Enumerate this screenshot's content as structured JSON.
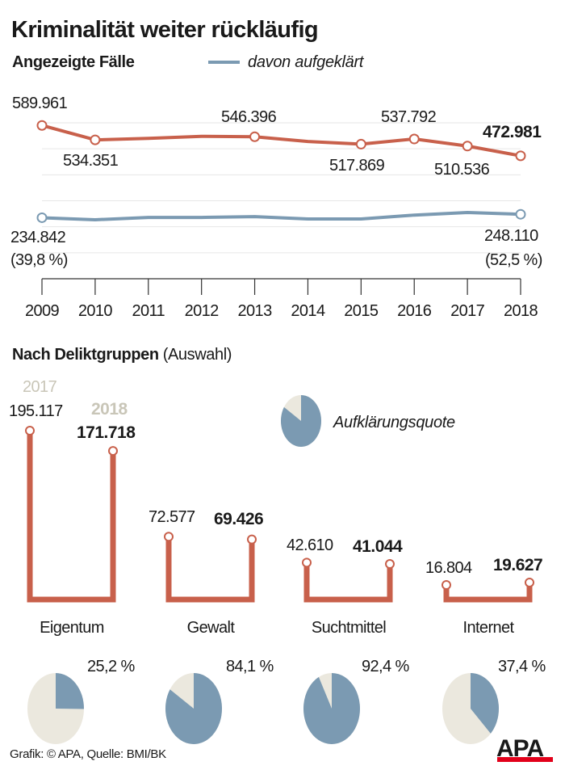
{
  "title": "Kriminalität weiter rückläufig",
  "colors": {
    "reported": "#c8604b",
    "solved": "#7b9ab2",
    "unsolved": "#ebe8de",
    "grid": "#e6e6e6",
    "year_grey": "#c9c6b8",
    "logo_red": "#e2001a"
  },
  "chart_data": [
    {
      "type": "line",
      "title": "Angezeigte Fälle",
      "legend_label": "davon aufgeklärt",
      "categories": [
        "2009",
        "2010",
        "2011",
        "2012",
        "2013",
        "2014",
        "2015",
        "2016",
        "2017",
        "2018"
      ],
      "ylim": [
        0,
        600000
      ],
      "grid": true,
      "series": [
        {
          "name": "Angezeigte Fälle",
          "values": [
            589961,
            534351,
            540000,
            548000,
            546396,
            528000,
            517869,
            537792,
            510536,
            472981
          ]
        },
        {
          "name": "davon aufgeklärt",
          "values": [
            234842,
            227000,
            236000,
            236000,
            239000,
            230000,
            230000,
            245000,
            255000,
            248110
          ]
        }
      ],
      "data_labels": {
        "v2009": "589.961",
        "v2010": "534.351",
        "v2013": "546.396",
        "v2015": "517.869",
        "v2016": "537.792",
        "v2017": "510.536",
        "v2018": "472.981",
        "s2009": "234.842",
        "s2009_pct": "(39,8 %)",
        "s2018": "248.110",
        "s2018_pct": "(52,5 %)"
      }
    },
    {
      "type": "bar",
      "title": "Nach Deliktgruppen",
      "subtitle": "(Auswahl)",
      "year_labels": [
        "2017",
        "2018"
      ],
      "categories": [
        "Eigentum",
        "Gewalt",
        "Suchtmittel",
        "Internet"
      ],
      "series": [
        {
          "name": "2017",
          "values": [
            195117,
            72577,
            42610,
            16804
          ],
          "labels": [
            "195.117",
            "72.577",
            "42.610",
            "16.804"
          ]
        },
        {
          "name": "2018",
          "values": [
            171718,
            69426,
            41044,
            19627
          ],
          "labels": [
            "171.718",
            "69.426",
            "41.044",
            "19.627"
          ]
        }
      ]
    },
    {
      "type": "pie",
      "legend_label": "Aufklärungsquote",
      "categories": [
        "Eigentum",
        "Gewalt",
        "Suchtmittel",
        "Internet"
      ],
      "values": [
        25.2,
        84.1,
        92.4,
        37.4
      ],
      "labels": [
        "25,2 %",
        "84,1 %",
        "92,4 %",
        "37,4 %"
      ],
      "legend_example_value": 84
    }
  ],
  "footer": {
    "credit": "Grafik: © APA, Quelle: BMI/BK",
    "logo": "APA"
  }
}
